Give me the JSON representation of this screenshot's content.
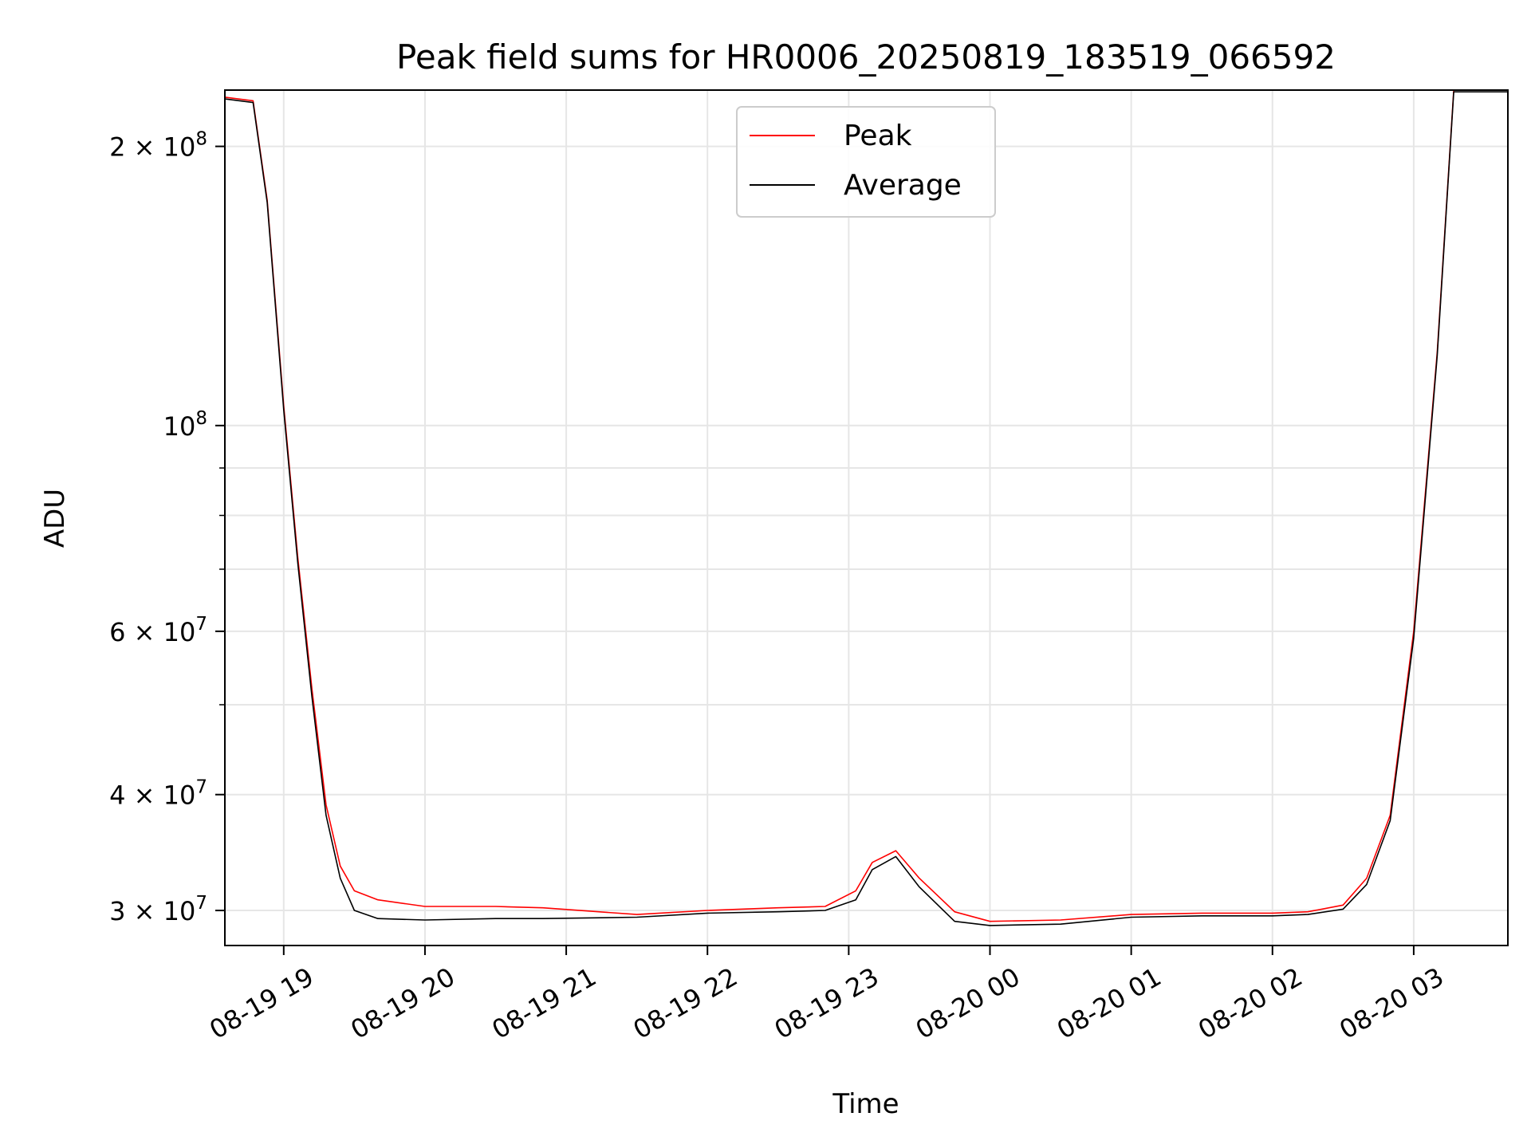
{
  "chart_data": {
    "type": "line",
    "title": "Peak field sums for HR0006_20250819_183519_066592",
    "xlabel": "Time",
    "ylabel": "ADU",
    "y_scale": "log",
    "ylim": [
      27500000,
      230000000
    ],
    "xlim": [
      "2025-08-19 18:35",
      "2025-08-20 03:40"
    ],
    "grid": true,
    "legend_position": "top-center",
    "x_ticks": [
      {
        "t": "2025-08-19 19:00",
        "label": "08-19 19"
      },
      {
        "t": "2025-08-19 20:00",
        "label": "08-19 20"
      },
      {
        "t": "2025-08-19 21:00",
        "label": "08-19 21"
      },
      {
        "t": "2025-08-19 22:00",
        "label": "08-19 22"
      },
      {
        "t": "2025-08-19 23:00",
        "label": "08-19 23"
      },
      {
        "t": "2025-08-20 00:00",
        "label": "08-20 00"
      },
      {
        "t": "2025-08-20 01:00",
        "label": "08-20 01"
      },
      {
        "t": "2025-08-20 02:00",
        "label": "08-20 02"
      },
      {
        "t": "2025-08-20 03:00",
        "label": "08-20 03"
      }
    ],
    "y_major_ticks": [
      {
        "v": 30000000,
        "mant": "3",
        "exp": "7"
      },
      {
        "v": 40000000,
        "mant": "4",
        "exp": "7"
      },
      {
        "v": 60000000,
        "mant": "6",
        "exp": "7"
      },
      {
        "v": 100000000,
        "mant": "",
        "exp": "8"
      },
      {
        "v": 200000000,
        "mant": "2",
        "exp": "8"
      }
    ],
    "y_minor_ticks": [
      50000000,
      70000000,
      80000000,
      90000000
    ],
    "series": [
      {
        "name": "Peak",
        "color": "#ff0000",
        "x": [
          "2025-08-19 18:35",
          "2025-08-19 18:47",
          "2025-08-19 18:53",
          "2025-08-19 19:00",
          "2025-08-19 19:06",
          "2025-08-19 19:12",
          "2025-08-19 19:18",
          "2025-08-19 19:24",
          "2025-08-19 19:30",
          "2025-08-19 19:40",
          "2025-08-19 20:00",
          "2025-08-19 20:30",
          "2025-08-19 20:50",
          "2025-08-19 21:30",
          "2025-08-19 22:00",
          "2025-08-19 22:30",
          "2025-08-19 22:50",
          "2025-08-19 23:03",
          "2025-08-19 23:10",
          "2025-08-19 23:20",
          "2025-08-19 23:30",
          "2025-08-19 23:45",
          "2025-08-20 00:00",
          "2025-08-20 00:30",
          "2025-08-20 01:00",
          "2025-08-20 01:30",
          "2025-08-20 02:00",
          "2025-08-20 02:15",
          "2025-08-20 02:30",
          "2025-08-20 02:40",
          "2025-08-20 02:50",
          "2025-08-20 03:00",
          "2025-08-20 03:10",
          "2025-08-20 03:17",
          "2025-08-20 03:40"
        ],
        "y": [
          226000000,
          224000000,
          175000000,
          105000000,
          72000000,
          52000000,
          39000000,
          33500000,
          31500000,
          30800000,
          30300000,
          30300000,
          30200000,
          29700000,
          30000000,
          30200000,
          30300000,
          31500000,
          33800000,
          34800000,
          32500000,
          29900000,
          29200000,
          29300000,
          29700000,
          29800000,
          29800000,
          29900000,
          30400000,
          32500000,
          38000000,
          60000000,
          120000000,
          230000000,
          230000000
        ]
      },
      {
        "name": "Average",
        "color": "#000000",
        "x": [
          "2025-08-19 18:35",
          "2025-08-19 18:47",
          "2025-08-19 18:53",
          "2025-08-19 19:00",
          "2025-08-19 19:06",
          "2025-08-19 19:12",
          "2025-08-19 19:18",
          "2025-08-19 19:24",
          "2025-08-19 19:30",
          "2025-08-19 19:40",
          "2025-08-19 20:00",
          "2025-08-19 20:30",
          "2025-08-19 20:50",
          "2025-08-19 21:30",
          "2025-08-19 22:00",
          "2025-08-19 22:30",
          "2025-08-19 22:50",
          "2025-08-19 23:03",
          "2025-08-19 23:10",
          "2025-08-19 23:20",
          "2025-08-19 23:30",
          "2025-08-19 23:45",
          "2025-08-20 00:00",
          "2025-08-20 00:30",
          "2025-08-20 01:00",
          "2025-08-20 01:30",
          "2025-08-20 02:00",
          "2025-08-20 02:15",
          "2025-08-20 02:30",
          "2025-08-20 02:40",
          "2025-08-20 02:50",
          "2025-08-20 03:00",
          "2025-08-20 03:10",
          "2025-08-20 03:17",
          "2025-08-20 03:40"
        ],
        "y": [
          225000000,
          223000000,
          174000000,
          104000000,
          71000000,
          51000000,
          38000000,
          32500000,
          30000000,
          29400000,
          29300000,
          29400000,
          29400000,
          29500000,
          29800000,
          29900000,
          30000000,
          30800000,
          33200000,
          34300000,
          31800000,
          29200000,
          28900000,
          29000000,
          29500000,
          29600000,
          29600000,
          29700000,
          30100000,
          32000000,
          37500000,
          59000000,
          119000000,
          229000000,
          229000000
        ]
      }
    ]
  }
}
